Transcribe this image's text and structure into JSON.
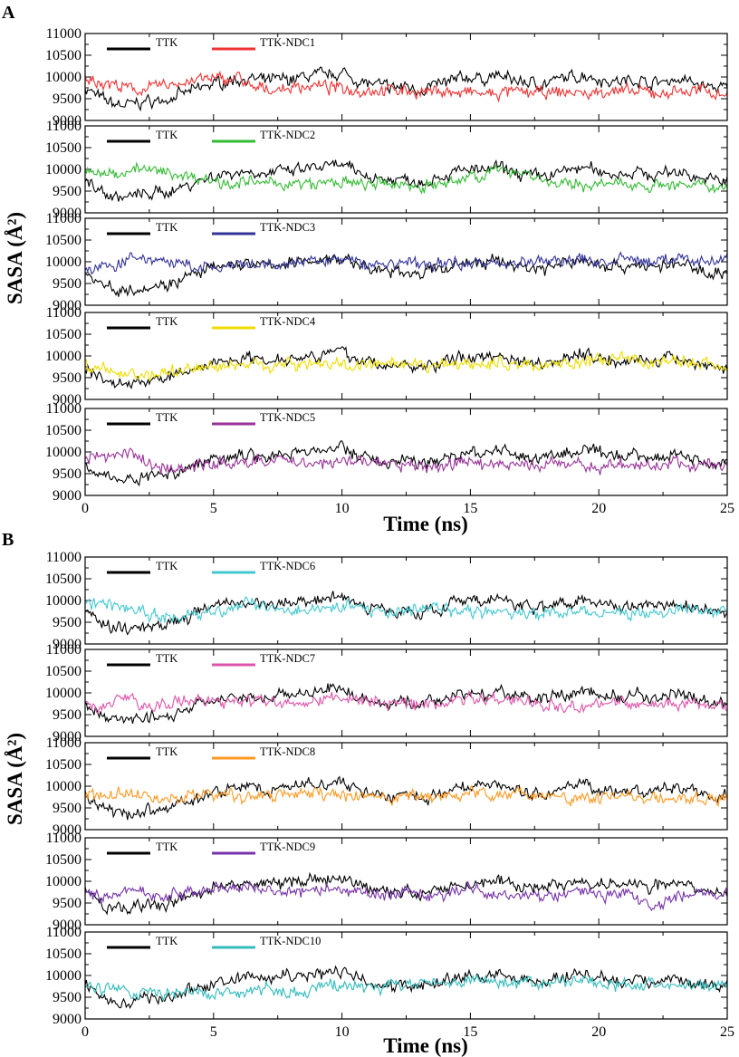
{
  "figure": {
    "panel_labels": [
      "A",
      "B"
    ],
    "xlabel": "Time (ns)",
    "ylabel": "SASA (Å²)"
  },
  "chart_data": {
    "type": "line",
    "x_range": [
      0,
      25
    ],
    "y_range": [
      9000,
      11000
    ],
    "x_ticks": [
      0,
      5,
      10,
      15,
      20,
      25
    ],
    "y_ticks": [
      9000,
      9500,
      10000,
      10500,
      11000
    ],
    "xlabel": "Time (ns)",
    "ylabel": "SASA (Å²)",
    "legend_position": "top-left",
    "grid": false,
    "reference_series": {
      "name": "TTK",
      "color": "#000000",
      "x": [
        0,
        0.5,
        1,
        1.5,
        2,
        2.5,
        3,
        3.5,
        4,
        4.5,
        5,
        5.5,
        6,
        6.5,
        7,
        7.5,
        8,
        8.5,
        9,
        9.5,
        10,
        10.5,
        11,
        11.5,
        12,
        12.5,
        13,
        13.5,
        14,
        14.5,
        15,
        15.5,
        16,
        16.5,
        17,
        17.5,
        18,
        18.5,
        19,
        19.5,
        20,
        20.5,
        21,
        21.5,
        22,
        22.5,
        23,
        23.5,
        24,
        24.5,
        25
      ],
      "y": [
        9750,
        9550,
        9400,
        9350,
        9400,
        9450,
        9450,
        9550,
        9650,
        9750,
        9850,
        9900,
        9950,
        9950,
        9900,
        9950,
        9950,
        10000,
        10050,
        10050,
        10100,
        9950,
        9850,
        9800,
        9750,
        9800,
        9700,
        9800,
        9850,
        9950,
        10000,
        9950,
        10050,
        9950,
        9900,
        9850,
        9850,
        9950,
        10000,
        10050,
        9950,
        9900,
        9900,
        9950,
        9850,
        9900,
        9950,
        9900,
        9800,
        9750,
        9750
      ]
    },
    "panels": [
      {
        "group": "A",
        "name": "TTK-NDC1",
        "color": "#ee3333",
        "x": [
          0,
          0.5,
          1,
          1.5,
          2,
          2.5,
          3,
          3.5,
          4,
          4.5,
          5,
          5.5,
          6,
          6.5,
          7,
          7.5,
          8,
          8.5,
          9,
          9.5,
          10,
          10.5,
          11,
          11.5,
          12,
          12.5,
          13,
          13.5,
          14,
          14.5,
          15,
          15.5,
          16,
          16.5,
          17,
          17.5,
          18,
          18.5,
          19,
          19.5,
          20,
          20.5,
          21,
          21.5,
          22,
          22.5,
          23,
          23.5,
          24,
          24.5,
          25
        ],
        "y": [
          9950,
          9900,
          9850,
          9750,
          9700,
          9750,
          9800,
          9850,
          9900,
          9950,
          9950,
          9950,
          10000,
          9700,
          9750,
          9700,
          9750,
          9800,
          9800,
          9750,
          9750,
          9700,
          9700,
          9700,
          9700,
          9700,
          9650,
          9650,
          9700,
          9600,
          9650,
          9600,
          9600,
          9650,
          9650,
          9650,
          9600,
          9650,
          9650,
          9600,
          9650,
          9700,
          9650,
          9650,
          9650,
          9600,
          9700,
          9650,
          9700,
          9650,
          9650
        ]
      },
      {
        "group": "A",
        "name": "TTK-NDC2",
        "color": "#33bb33",
        "x": [
          0,
          0.5,
          1,
          1.5,
          2,
          2.5,
          3,
          3.5,
          4,
          4.5,
          5,
          5.5,
          6,
          6.5,
          7,
          7.5,
          8,
          8.5,
          9,
          9.5,
          10,
          10.5,
          11,
          11.5,
          12,
          12.5,
          13,
          13.5,
          14,
          14.5,
          15,
          15.5,
          16,
          16.5,
          17,
          17.5,
          18,
          18.5,
          19,
          19.5,
          20,
          20.5,
          21,
          21.5,
          22,
          22.5,
          23,
          23.5,
          24,
          24.5,
          25
        ],
        "y": [
          9950,
          9900,
          9900,
          9950,
          10050,
          9950,
          9950,
          9900,
          9850,
          9800,
          9750,
          9700,
          9700,
          9700,
          9650,
          9700,
          9650,
          9650,
          9650,
          9700,
          9700,
          9650,
          9650,
          9650,
          9650,
          9650,
          9600,
          9650,
          9650,
          9700,
          9900,
          9850,
          9950,
          10000,
          9950,
          9850,
          9700,
          9650,
          9650,
          9650,
          9650,
          9650,
          9650,
          9700,
          9600,
          9650,
          9650,
          9600,
          9600,
          9600,
          9600
        ]
      },
      {
        "group": "A",
        "name": "TTK-NDC3",
        "color": "#333399",
        "x": [
          0,
          0.5,
          1,
          1.5,
          2,
          2.5,
          3,
          3.5,
          4,
          4.5,
          5,
          5.5,
          6,
          6.5,
          7,
          7.5,
          8,
          8.5,
          9,
          9.5,
          10,
          10.5,
          11,
          11.5,
          12,
          12.5,
          13,
          13.5,
          14,
          14.5,
          15,
          15.5,
          16,
          16.5,
          17,
          17.5,
          18,
          18.5,
          19,
          19.5,
          20,
          20.5,
          21,
          21.5,
          22,
          22.5,
          23,
          23.5,
          24,
          24.5,
          25
        ],
        "y": [
          9800,
          9850,
          9900,
          10000,
          10100,
          10050,
          10050,
          9950,
          9900,
          9850,
          9850,
          9850,
          9900,
          9900,
          9900,
          9900,
          9950,
          10000,
          10000,
          10050,
          10050,
          10000,
          9950,
          9950,
          9950,
          10000,
          9950,
          9950,
          9950,
          10000,
          10000,
          9950,
          9950,
          10000,
          10000,
          10000,
          10000,
          10000,
          10050,
          10050,
          10000,
          10000,
          10050,
          10050,
          10000,
          10050,
          10050,
          10050,
          10000,
          10050,
          10050
        ]
      },
      {
        "group": "A",
        "name": "TTK-NDC4",
        "color": "#eedd00",
        "x": [
          0,
          0.5,
          1,
          1.5,
          2,
          2.5,
          3,
          3.5,
          4,
          4.5,
          5,
          5.5,
          6,
          6.5,
          7,
          7.5,
          8,
          8.5,
          9,
          9.5,
          10,
          10.5,
          11,
          11.5,
          12,
          12.5,
          13,
          13.5,
          14,
          14.5,
          15,
          15.5,
          16,
          16.5,
          17,
          17.5,
          18,
          18.5,
          19,
          19.5,
          20,
          20.5,
          21,
          21.5,
          22,
          22.5,
          23,
          23.5,
          24,
          24.5,
          25
        ],
        "y": [
          9750,
          9700,
          9650,
          9600,
          9600,
          9550,
          9600,
          9650,
          9700,
          9750,
          9750,
          9750,
          9800,
          9800,
          9800,
          9800,
          9800,
          9850,
          9850,
          9800,
          9800,
          9750,
          9800,
          9750,
          9800,
          9750,
          9750,
          9800,
          9800,
          9800,
          9800,
          9800,
          9850,
          9800,
          9800,
          9800,
          9800,
          9850,
          9850,
          9850,
          9900,
          9900,
          9950,
          9900,
          9850,
          9900,
          9850,
          9850,
          9850,
          9800,
          9750
        ]
      },
      {
        "group": "A",
        "name": "TTK-NDC5",
        "color": "#993399",
        "x": [
          0,
          0.5,
          1,
          1.5,
          2,
          2.5,
          3,
          3.5,
          4,
          4.5,
          5,
          5.5,
          6,
          6.5,
          7,
          7.5,
          8,
          8.5,
          9,
          9.5,
          10,
          10.5,
          11,
          11.5,
          12,
          12.5,
          13,
          13.5,
          14,
          14.5,
          15,
          15.5,
          16,
          16.5,
          17,
          17.5,
          18,
          18.5,
          19,
          19.5,
          20,
          20.5,
          21,
          21.5,
          22,
          22.5,
          23,
          23.5,
          24,
          24.5,
          25
        ],
        "y": [
          9850,
          9900,
          9850,
          10000,
          9900,
          9750,
          9650,
          9600,
          9650,
          9700,
          9700,
          9750,
          9750,
          9800,
          9800,
          9800,
          9800,
          9750,
          9800,
          9750,
          9750,
          9800,
          9800,
          9750,
          9700,
          9650,
          9700,
          9650,
          9700,
          9750,
          9750,
          9700,
          9750,
          9700,
          9700,
          9700,
          9700,
          9700,
          9700,
          9700,
          9650,
          9700,
          9650,
          9700,
          9700,
          9700,
          9750,
          9700,
          9700,
          9700,
          9700
        ]
      },
      {
        "group": "B",
        "name": "TTK-NDC6",
        "color": "#44c8d0",
        "x": [
          0,
          0.5,
          1,
          1.5,
          2,
          2.5,
          3,
          3.5,
          4,
          4.5,
          5,
          5.5,
          6,
          6.5,
          7,
          7.5,
          8,
          8.5,
          9,
          9.5,
          10,
          10.5,
          11,
          11.5,
          12,
          12.5,
          13,
          13.5,
          14,
          14.5,
          15,
          15.5,
          16,
          16.5,
          17,
          17.5,
          18,
          18.5,
          19,
          19.5,
          20,
          20.5,
          21,
          21.5,
          22,
          22.5,
          23,
          23.5,
          24,
          24.5,
          25
        ],
        "y": [
          9950,
          9950,
          9900,
          9850,
          9800,
          9700,
          9600,
          9600,
          9650,
          9700,
          9750,
          9800,
          9850,
          9950,
          9900,
          9850,
          9800,
          9800,
          9850,
          9850,
          9800,
          9900,
          9800,
          9750,
          9750,
          9750,
          9800,
          9800,
          9800,
          9750,
          9700,
          9750,
          9750,
          9700,
          9700,
          9700,
          9700,
          9700,
          9750,
          9750,
          9700,
          9700,
          9700,
          9700,
          9700,
          9700,
          9750,
          9800,
          9750,
          9750,
          9750
        ]
      },
      {
        "group": "B",
        "name": "TTK-NDC7",
        "color": "#dd55aa",
        "x": [
          0,
          0.5,
          1,
          1.5,
          2,
          2.5,
          3,
          3.5,
          4,
          4.5,
          5,
          5.5,
          6,
          6.5,
          7,
          7.5,
          8,
          8.5,
          9,
          9.5,
          10,
          10.5,
          11,
          11.5,
          12,
          12.5,
          13,
          13.5,
          14,
          14.5,
          15,
          15.5,
          16,
          16.5,
          17,
          17.5,
          18,
          18.5,
          19,
          19.5,
          20,
          20.5,
          21,
          21.5,
          22,
          22.5,
          23,
          23.5,
          24,
          24.5,
          25
        ],
        "y": [
          9700,
          9700,
          9750,
          9900,
          9800,
          9700,
          9700,
          9800,
          9850,
          9800,
          9800,
          9750,
          9800,
          9800,
          9800,
          9800,
          9800,
          9800,
          9850,
          9900,
          9850,
          9800,
          9800,
          9750,
          9750,
          9750,
          9700,
          9750,
          9800,
          9850,
          9900,
          9850,
          9850,
          9850,
          9800,
          9800,
          9750,
          9750,
          9700,
          9700,
          9750,
          9750,
          9800,
          9750,
          9750,
          9750,
          9800,
          9750,
          9700,
          9700,
          9650
        ]
      },
      {
        "group": "B",
        "name": "TTK-NDC8",
        "color": "#ff9922",
        "x": [
          0,
          0.5,
          1,
          1.5,
          2,
          2.5,
          3,
          3.5,
          4,
          4.5,
          5,
          5.5,
          6,
          6.5,
          7,
          7.5,
          8,
          8.5,
          9,
          9.5,
          10,
          10.5,
          11,
          11.5,
          12,
          12.5,
          13,
          13.5,
          14,
          14.5,
          15,
          15.5,
          16,
          16.5,
          17,
          17.5,
          18,
          18.5,
          19,
          19.5,
          20,
          20.5,
          21,
          21.5,
          22,
          22.5,
          23,
          23.5,
          24,
          24.5,
          25
        ],
        "y": [
          9700,
          9750,
          9800,
          9950,
          9800,
          9750,
          9700,
          9700,
          9750,
          9800,
          9800,
          9800,
          9750,
          9750,
          9800,
          9750,
          9800,
          9850,
          9800,
          9800,
          9800,
          9750,
          9750,
          9750,
          9700,
          9750,
          9700,
          9750,
          9800,
          9800,
          9850,
          9850,
          9800,
          9850,
          9850,
          9800,
          9750,
          9750,
          9700,
          9700,
          9700,
          9750,
          9800,
          9750,
          9750,
          9700,
          9750,
          9700,
          9700,
          9700,
          9650
        ]
      },
      {
        "group": "B",
        "name": "TTK-NDC9",
        "color": "#7733aa",
        "x": [
          0,
          0.5,
          1,
          1.5,
          2,
          2.5,
          3,
          3.5,
          4,
          4.5,
          5,
          5.5,
          6,
          6.5,
          7,
          7.5,
          8,
          8.5,
          9,
          9.5,
          10,
          10.5,
          11,
          11.5,
          12,
          12.5,
          13,
          13.5,
          14,
          14.5,
          15,
          15.5,
          16,
          16.5,
          17,
          17.5,
          18,
          18.5,
          19,
          19.5,
          20,
          20.5,
          21,
          21.5,
          22,
          22.5,
          23,
          23.5,
          24,
          24.5,
          25
        ],
        "y": [
          9700,
          9650,
          9700,
          9750,
          9800,
          9700,
          9650,
          9700,
          9750,
          9750,
          9800,
          9800,
          9850,
          9900,
          9800,
          9750,
          9750,
          9800,
          9850,
          9850,
          9850,
          9800,
          9750,
          9700,
          9700,
          9750,
          9700,
          9700,
          9750,
          9800,
          9800,
          9750,
          9700,
          9700,
          9700,
          9700,
          9650,
          9700,
          9750,
          9750,
          9700,
          9700,
          9700,
          9700,
          9350,
          9550,
          9700,
          9700,
          9750,
          9700,
          9650
        ]
      },
      {
        "group": "B",
        "name": "TTK-NDC10",
        "color": "#33bbbb",
        "x": [
          0,
          0.5,
          1,
          1.5,
          2,
          2.5,
          3,
          3.5,
          4,
          4.5,
          5,
          5.5,
          6,
          6.5,
          7,
          7.5,
          8,
          8.5,
          9,
          9.5,
          10,
          10.5,
          11,
          11.5,
          12,
          12.5,
          13,
          13.5,
          14,
          14.5,
          15,
          15.5,
          16,
          16.5,
          17,
          17.5,
          18,
          18.5,
          19,
          19.5,
          20,
          20.5,
          21,
          21.5,
          22,
          22.5,
          23,
          23.5,
          24,
          24.5,
          25
        ],
        "y": [
          9700,
          9650,
          9700,
          9650,
          9600,
          9650,
          9600,
          9600,
          9650,
          9600,
          9600,
          9650,
          9600,
          9650,
          9700,
          9650,
          9600,
          9650,
          9700,
          9750,
          9800,
          9700,
          9700,
          9750,
          9800,
          9800,
          9850,
          9850,
          9850,
          9850,
          9900,
          9900,
          9850,
          9850,
          9850,
          9850,
          9850,
          9850,
          9850,
          9850,
          9800,
          9800,
          9850,
          9800,
          9850,
          9800,
          9800,
          9800,
          9750,
          9800,
          9750
        ]
      }
    ]
  }
}
